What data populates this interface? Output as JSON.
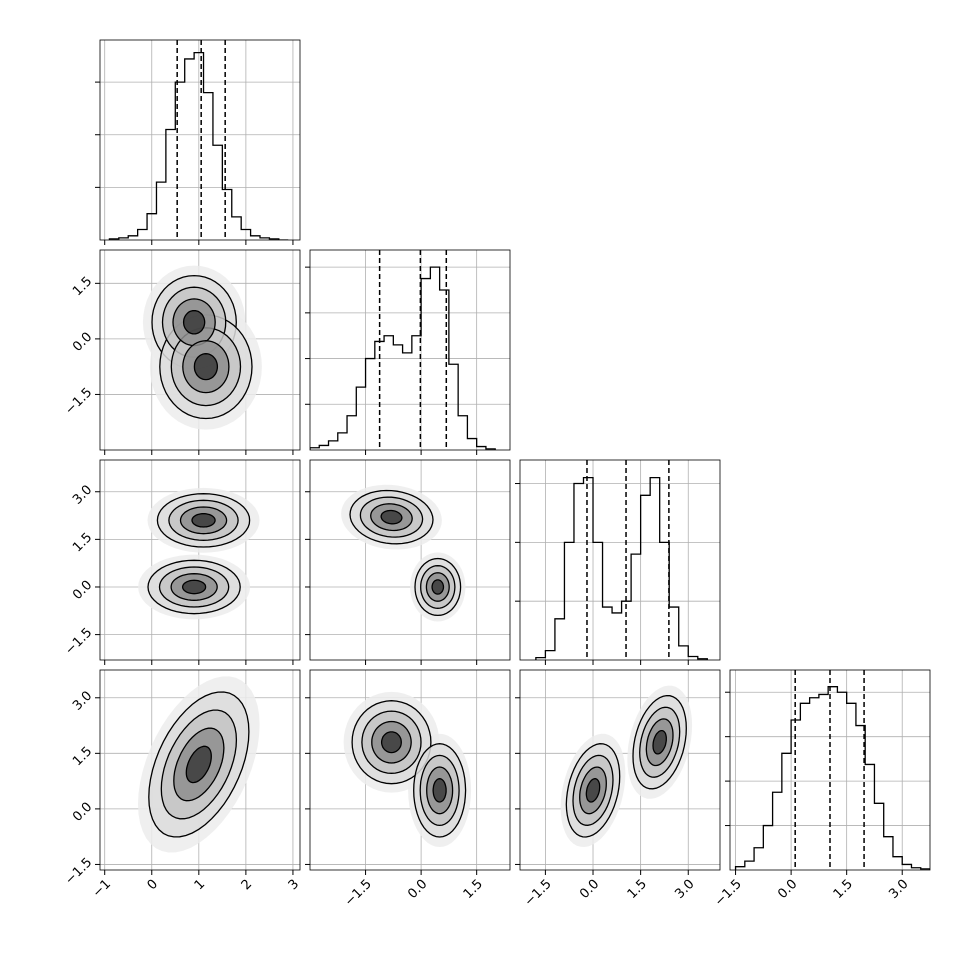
{
  "chart_data": {
    "type": "corner",
    "params": [
      {
        "lim": [
          -1.1,
          3.15
        ],
        "ticks": [
          {
            "value": -1,
            "label": "−1"
          },
          0,
          1,
          2,
          3
        ],
        "quantiles": [
          0.54,
          1.05,
          1.56
        ],
        "hist": {
          "bins": [
            -0.9,
            -0.7,
            -0.5,
            -0.3,
            -0.1,
            0.1,
            0.3,
            0.5,
            0.7,
            0.9,
            1.1,
            1.3,
            1.5,
            1.7,
            1.9,
            2.1,
            2.3,
            2.5,
            2.7,
            2.9
          ],
          "counts": [
            1,
            2,
            4,
            10,
            25,
            55,
            105,
            150,
            172,
            178,
            140,
            90,
            48,
            22,
            10,
            4,
            2,
            1,
            0
          ],
          "ylim": [
            0,
            190
          ],
          "yticks": [
            50,
            100,
            150
          ]
        }
      },
      {
        "lim": [
          -3.0,
          2.4
        ],
        "ticks": [
          {
            "value": -1.5,
            "label": "−1.5"
          },
          {
            "value": 0,
            "label": "0.0"
          },
          {
            "value": 1.5,
            "label": "1.5"
          }
        ],
        "quantiles": [
          -1.12,
          -0.02,
          0.68
        ],
        "hist": {
          "bins": [
            -3.0,
            -2.75,
            -2.5,
            -2.25,
            -2.0,
            -1.75,
            -1.5,
            -1.25,
            -1.0,
            -0.75,
            -0.5,
            -0.25,
            0,
            0.25,
            0.5,
            0.75,
            1.0,
            1.25,
            1.5,
            1.75,
            2.0
          ],
          "counts": [
            2,
            4,
            8,
            15,
            30,
            55,
            80,
            95,
            100,
            92,
            85,
            100,
            150,
            160,
            140,
            75,
            30,
            10,
            3,
            1
          ],
          "ylim": [
            0,
            175
          ],
          "yticks": [
            40,
            80,
            120,
            160
          ]
        }
      },
      {
        "lim": [
          -2.3,
          4.0
        ],
        "ticks": [
          {
            "value": -1.5,
            "label": "−1.5"
          },
          {
            "value": 0,
            "label": "0.0"
          },
          {
            "value": 1.5,
            "label": "1.5"
          },
          {
            "value": 3,
            "label": "3.0"
          }
        ],
        "quantiles": [
          -0.19,
          1.04,
          2.39
        ],
        "hist": {
          "bins": [
            -1.8,
            -1.5,
            -1.2,
            -0.9,
            -0.6,
            -0.3,
            0,
            0.3,
            0.6,
            0.9,
            1.2,
            1.5,
            1.8,
            2.1,
            2.4,
            2.7,
            3.0,
            3.3,
            3.6
          ],
          "counts": [
            2,
            8,
            35,
            100,
            150,
            155,
            100,
            45,
            40,
            50,
            90,
            140,
            155,
            100,
            45,
            12,
            3,
            1
          ],
          "ylim": [
            0,
            170
          ],
          "yticks": [
            50,
            100,
            150
          ]
        }
      },
      {
        "lim": [
          -1.65,
          3.75
        ],
        "ticks": [
          {
            "value": -1.5,
            "label": "−1.5"
          },
          {
            "value": 0,
            "label": "0.0"
          },
          {
            "value": 1.5,
            "label": "1.5"
          },
          {
            "value": 3,
            "label": "3.0"
          }
        ],
        "quantiles": [
          0.11,
          1.05,
          1.97
        ],
        "hist": {
          "bins": [
            -1.5,
            -1.25,
            -1.0,
            -0.75,
            -0.5,
            -0.25,
            0,
            0.25,
            0.5,
            0.75,
            1.0,
            1.25,
            1.5,
            1.75,
            2.0,
            2.25,
            2.5,
            2.75,
            3.0,
            3.25,
            3.5,
            3.75
          ],
          "counts": [
            3,
            8,
            20,
            40,
            70,
            105,
            135,
            150,
            155,
            158,
            165,
            160,
            150,
            130,
            95,
            60,
            30,
            12,
            5,
            2,
            1
          ],
          "ylim": [
            0,
            180
          ],
          "yticks": [
            40,
            80,
            120,
            160
          ]
        }
      }
    ],
    "panels": [
      {
        "row": 1,
        "col": 0,
        "clusters": [
          {
            "x": 0.9,
            "y": 0.45,
            "sx": 0.32,
            "sy": 0.45,
            "rho": 0
          },
          {
            "x": 1.15,
            "y": -0.75,
            "sx": 0.35,
            "sy": 0.5,
            "rho": 0
          }
        ]
      },
      {
        "row": 2,
        "col": 0,
        "clusters": [
          {
            "x": 1.1,
            "y": 2.1,
            "sx": 0.35,
            "sy": 0.3,
            "rho": 0
          },
          {
            "x": 0.9,
            "y": 0,
            "sx": 0.35,
            "sy": 0.3,
            "rho": 0
          }
        ]
      },
      {
        "row": 2,
        "col": 1,
        "clusters": [
          {
            "x": -0.8,
            "y": 2.2,
            "sx": 0.4,
            "sy": 0.3,
            "rho": -0.1
          },
          {
            "x": 0.45,
            "y": 0,
            "sx": 0.22,
            "sy": 0.32,
            "rho": 0
          }
        ]
      },
      {
        "row": 3,
        "col": 0,
        "clusters": [
          {
            "x": 1.0,
            "y": 1.2,
            "sx": 0.38,
            "sy": 0.7,
            "rho": 0.45
          }
        ]
      },
      {
        "row": 3,
        "col": 1,
        "clusters": [
          {
            "x": -0.8,
            "y": 1.8,
            "sx": 0.38,
            "sy": 0.4,
            "rho": 0
          },
          {
            "x": 0.5,
            "y": 0.5,
            "sx": 0.25,
            "sy": 0.45,
            "rho": 0
          }
        ]
      },
      {
        "row": 3,
        "col": 2,
        "clusters": [
          {
            "x": 0,
            "y": 0.5,
            "sx": 0.3,
            "sy": 0.45,
            "rho": 0.3
          },
          {
            "x": 2.1,
            "y": 1.8,
            "sx": 0.3,
            "sy": 0.45,
            "rho": 0.3
          }
        ]
      }
    ]
  }
}
